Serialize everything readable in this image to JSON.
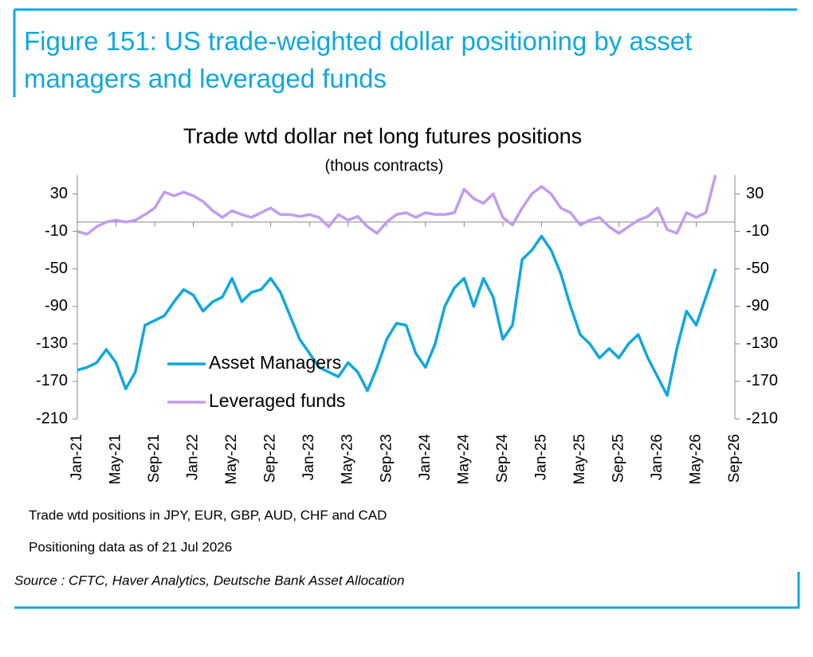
{
  "figure_title": "Figure 151: US trade-weighted dollar positioning by asset managers and leveraged funds",
  "notes": [
    "Trade wtd positions in JPY, EUR, GBP, AUD, CHF and CAD",
    "Positioning data as of 21 Jul 2026"
  ],
  "source": "Source : CFTC, Haver Analytics, Deutsche Bank Asset Allocation",
  "chart_data": {
    "type": "line",
    "title": "Trade wtd dollar net long futures positions",
    "subtitle": "(thous contracts)",
    "categories": [
      "Jan-21",
      null,
      null,
      null,
      "May-21",
      null,
      null,
      null,
      "Sep-21",
      null,
      null,
      null,
      "Jan-22",
      null,
      null,
      null,
      "May-22",
      null,
      null,
      null,
      "Sep-22",
      null,
      null,
      null,
      "Jan-23",
      null,
      null,
      null,
      "May-23",
      null,
      null,
      null,
      "Sep-23",
      null,
      null,
      null,
      "Jan-24",
      null,
      null,
      null,
      "May-24",
      null,
      null,
      null,
      "Sep-24",
      null,
      null,
      null,
      "Jan-25",
      null,
      null,
      null,
      "May-25",
      null,
      null,
      null,
      "Sep-25",
      null,
      null,
      null,
      "Jan-26",
      null,
      null,
      null,
      "May-26",
      null,
      null,
      null,
      "Sep-26"
    ],
    "series": [
      {
        "name": "Asset Managers",
        "color": "#0fa8e0",
        "values": [
          -158,
          -155,
          -150,
          -136,
          -150,
          -178,
          -160,
          -110,
          -105,
          -100,
          -85,
          -72,
          -78,
          -95,
          -85,
          -80,
          -60,
          -85,
          -75,
          -72,
          -60,
          -75,
          -100,
          -125,
          -140,
          -155,
          -160,
          -165,
          -150,
          -160,
          -180,
          -155,
          -125,
          -108,
          -110,
          -140,
          -155,
          -130,
          -90,
          -70,
          -60,
          -90,
          -60,
          -80,
          -125,
          -110,
          -40,
          -30,
          -15,
          -30,
          -55,
          -90,
          -120,
          -130,
          -145,
          -135,
          -145,
          -130,
          -120,
          -145,
          -165,
          -185,
          -135,
          -95,
          -110,
          -80,
          -50,
          null,
          null
        ]
      },
      {
        "name": "Leveraged funds",
        "color": "#c39bf0",
        "values": [
          -10,
          -13,
          -5,
          0,
          2,
          0,
          2,
          8,
          15,
          32,
          28,
          32,
          28,
          22,
          12,
          5,
          12,
          8,
          5,
          10,
          15,
          8,
          8,
          6,
          8,
          5,
          -5,
          8,
          2,
          6,
          -5,
          -12,
          0,
          8,
          10,
          5,
          10,
          8,
          8,
          10,
          35,
          25,
          20,
          30,
          5,
          -3,
          15,
          30,
          38,
          30,
          15,
          10,
          -3,
          2,
          5,
          -5,
          -12,
          -5,
          2,
          6,
          15,
          -8,
          -12,
          10,
          5,
          10,
          50,
          null,
          null
        ]
      }
    ],
    "ylim": [
      -210,
      50
    ],
    "yticks": [
      -210,
      -170,
      -130,
      -90,
      -50,
      -10,
      30
    ],
    "y2lim": [
      -210,
      50
    ],
    "y2ticks": [
      -210,
      -170,
      -130,
      -90,
      -50,
      -10,
      30
    ]
  }
}
